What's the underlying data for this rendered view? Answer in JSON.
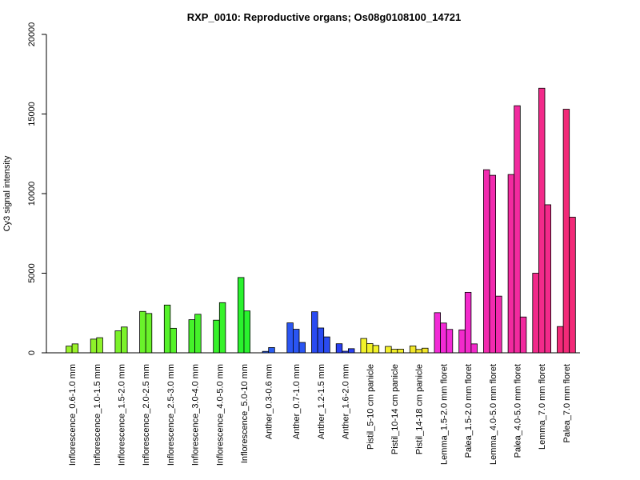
{
  "chart_data": {
    "type": "bar",
    "title": "RXP_0010: Reproductive organs; Os08g0108100_14721",
    "xlabel": "",
    "ylabel": "Cy3 signal intensity",
    "ylim": [
      0,
      20000
    ],
    "yticks": [
      0,
      5000,
      10000,
      15000,
      20000
    ],
    "grid": false,
    "legend": "none",
    "categories": [
      {
        "label": "Inflorescence_0.6-1.0 mm",
        "color": "#9AF22A",
        "values": [
          420,
          560
        ]
      },
      {
        "label": "Inflorescence_1.0-1.5 mm",
        "color": "#8EF22A",
        "values": [
          860,
          950
        ]
      },
      {
        "label": "Inflorescence_1.5-2.0 mm",
        "color": "#7BF22A",
        "values": [
          1380,
          1620
        ]
      },
      {
        "label": "Inflorescence_2.0-2.5 mm",
        "color": "#6AF22A",
        "values": [
          2600,
          2470
        ]
      },
      {
        "label": "Inflorescence_2.5-3.0 mm",
        "color": "#55F22A",
        "values": [
          3000,
          1540
        ]
      },
      {
        "label": "Inflorescence_3.0-4.0 mm",
        "color": "#45F22A",
        "values": [
          2080,
          2420
        ]
      },
      {
        "label": "Inflorescence_4.0-5.0 mm",
        "color": "#36F22A",
        "values": [
          2050,
          3150
        ]
      },
      {
        "label": "Inflorescence_5.0-10 mm",
        "color": "#2AF22E",
        "values": [
          4730,
          2630
        ]
      },
      {
        "label": "Anther_0.3-0.6 mm",
        "color": "#2A5DF2",
        "values": [
          90,
          330
        ]
      },
      {
        "label": "Anther_0.7-1.0 mm",
        "color": "#2A55F2",
        "values": [
          1880,
          1480,
          650
        ]
      },
      {
        "label": "Anther_1.2-1.5 mm",
        "color": "#2A4BF2",
        "values": [
          2580,
          1560,
          1000
        ]
      },
      {
        "label": "Anther_1.6-2.0 mm",
        "color": "#2A40F2",
        "values": [
          570,
          100,
          260
        ]
      },
      {
        "label": "Pistil_5-10 cm panicle",
        "color": "#F2F22A",
        "values": [
          900,
          580,
          460
        ]
      },
      {
        "label": "Pistil_10-14 cm panicle",
        "color": "#F2EE2A",
        "values": [
          400,
          220,
          230
        ]
      },
      {
        "label": "Pistil_14-18 cm panicle",
        "color": "#F2E62A",
        "values": [
          430,
          210,
          290
        ]
      },
      {
        "label": "Lemma_1.5-2.0 mm floret",
        "color": "#F22AD6",
        "values": [
          2520,
          1870,
          1470
        ]
      },
      {
        "label": "Palea_1.5-2.0 mm floret",
        "color": "#F22ACB",
        "values": [
          1440,
          3800,
          560
        ]
      },
      {
        "label": "Lemma_4.0-5.0 mm floret",
        "color": "#F22AAF",
        "values": [
          11500,
          11150,
          3560
        ]
      },
      {
        "label": "Palea_4.0-5.0 mm floret",
        "color": "#F22A9F",
        "values": [
          11200,
          15520,
          2250
        ]
      },
      {
        "label": "Lemma_7.0 mm floret",
        "color": "#F22A8A",
        "values": [
          5000,
          16620,
          9300
        ]
      },
      {
        "label": "Palea_7.0 mm floret",
        "color": "#F22A78",
        "values": [
          1650,
          15300,
          8520
        ]
      }
    ]
  }
}
